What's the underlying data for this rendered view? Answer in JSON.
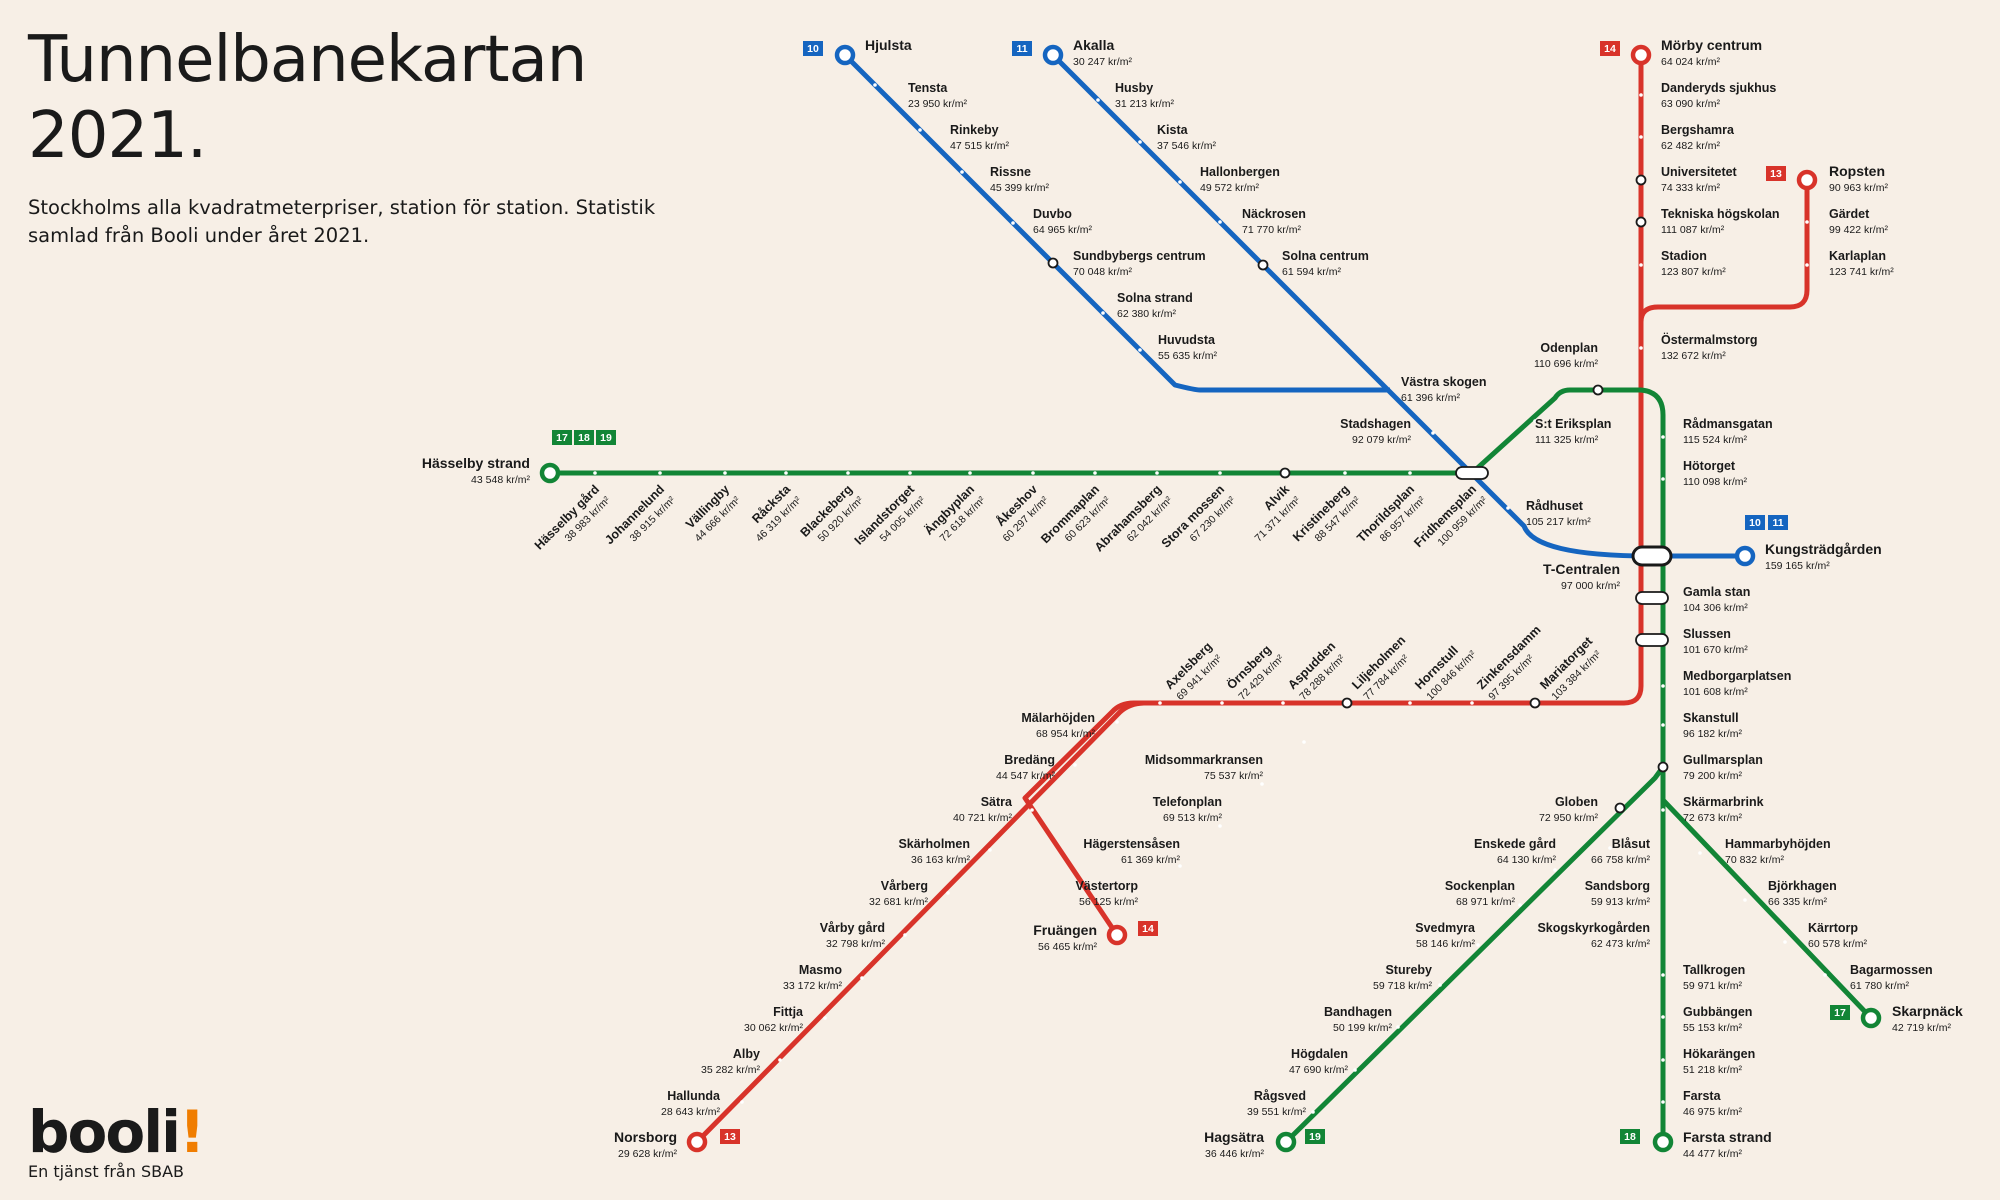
{
  "header": {
    "title_line1": "Tunnelbanekartan",
    "title_line2": "2021.",
    "subtitle": "Stockholms alla kvadratmeterpriser, station för station. Statistik samlad från Booli under året 2021."
  },
  "brand": {
    "logo": "booli",
    "logo_mark": "!",
    "tagline": "En tjänst från SBAB"
  },
  "colors": {
    "background": "#f7efe6",
    "green": "#128536",
    "red": "#d8332a",
    "blue": "#1565c0",
    "brand_orange": "#f07d00"
  },
  "line_badges": [
    {
      "line": "10",
      "color": "blue"
    },
    {
      "line": "11",
      "color": "blue"
    },
    {
      "line": "14",
      "color": "red"
    },
    {
      "line": "13",
      "color": "red"
    },
    {
      "line": "17",
      "color": "green"
    },
    {
      "line": "18",
      "color": "green"
    },
    {
      "line": "19",
      "color": "green"
    }
  ],
  "stations": [
    {
      "name": "Hjulsta",
      "price": "",
      "terminal": true,
      "line": "blue"
    },
    {
      "name": "Tensta",
      "price": "23 950 kr/m²",
      "line": "blue"
    },
    {
      "name": "Rinkeby",
      "price": "47 515 kr/m²",
      "line": "blue"
    },
    {
      "name": "Rissne",
      "price": "45 399 kr/m²",
      "line": "blue"
    },
    {
      "name": "Duvbo",
      "price": "64 965 kr/m²",
      "line": "blue"
    },
    {
      "name": "Sundbybergs centrum",
      "price": "70 048 kr/m²",
      "line": "blue"
    },
    {
      "name": "Solna strand",
      "price": "62 380 kr/m²",
      "line": "blue"
    },
    {
      "name": "Huvudsta",
      "price": "55 635 kr/m²",
      "line": "blue"
    },
    {
      "name": "Akalla",
      "price": "30 247 kr/m²",
      "terminal": true,
      "line": "blue"
    },
    {
      "name": "Husby",
      "price": "31 213 kr/m²",
      "line": "blue"
    },
    {
      "name": "Kista",
      "price": "37 546 kr/m²",
      "line": "blue"
    },
    {
      "name": "Hallonbergen",
      "price": "49 572 kr/m²",
      "line": "blue"
    },
    {
      "name": "Näckrosen",
      "price": "71 770 kr/m²",
      "line": "blue"
    },
    {
      "name": "Solna centrum",
      "price": "61 594 kr/m²",
      "line": "blue"
    },
    {
      "name": "Västra skogen",
      "price": "61 396 kr/m²",
      "line": "blue"
    },
    {
      "name": "Stadshagen",
      "price": "92 079 kr/m²",
      "line": "blue"
    },
    {
      "name": "Rådhuset",
      "price": "105 217 kr/m²",
      "line": "blue"
    },
    {
      "name": "T-Centralen",
      "price": "97 000 kr/m²",
      "terminal": true,
      "line": "blue"
    },
    {
      "name": "Kungsträdgården",
      "price": "159 165 kr/m²",
      "terminal": true,
      "line": "blue"
    },
    {
      "name": "Mörby centrum",
      "price": "64 024 kr/m²",
      "terminal": true,
      "line": "red"
    },
    {
      "name": "Danderyds sjukhus",
      "price": "63 090 kr/m²",
      "line": "red"
    },
    {
      "name": "Bergshamra",
      "price": "62 482 kr/m²",
      "line": "red"
    },
    {
      "name": "Universitetet",
      "price": "74 333 kr/m²",
      "line": "red"
    },
    {
      "name": "Tekniska högskolan",
      "price": "111 087 kr/m²",
      "line": "red"
    },
    {
      "name": "Stadion",
      "price": "123 807 kr/m²",
      "line": "red"
    },
    {
      "name": "Ropsten",
      "price": "90 963 kr/m²",
      "terminal": true,
      "line": "red"
    },
    {
      "name": "Gärdet",
      "price": "99 422 kr/m²",
      "line": "red"
    },
    {
      "name": "Karlaplan",
      "price": "123 741 kr/m²",
      "line": "red"
    },
    {
      "name": "Östermalmstorg",
      "price": "132 672 kr/m²",
      "line": "red"
    },
    {
      "name": "Odenplan",
      "price": "110 696 kr/m²",
      "line": "green"
    },
    {
      "name": "S:t Eriksplan",
      "price": "111 325 kr/m²",
      "line": "green"
    },
    {
      "name": "Rådmansgatan",
      "price": "115 524 kr/m²",
      "line": "green"
    },
    {
      "name": "Hötorget",
      "price": "110 098 kr/m²",
      "line": "green"
    },
    {
      "name": "Hässelby strand",
      "price": "43 548 kr/m²",
      "terminal": true,
      "line": "green"
    },
    {
      "name": "Hässelby gård",
      "price": "38 983 kr/m²",
      "line": "green"
    },
    {
      "name": "Johannelund",
      "price": "38 915 kr/m²",
      "line": "green"
    },
    {
      "name": "Vällingby",
      "price": "44 666 kr/m²",
      "line": "green"
    },
    {
      "name": "Råcksta",
      "price": "46 319 kr/m²",
      "line": "green"
    },
    {
      "name": "Blackeberg",
      "price": "50 920 kr/m²",
      "line": "green"
    },
    {
      "name": "Islandstorget",
      "price": "54 005 kr/m²",
      "line": "green"
    },
    {
      "name": "Ängbyplan",
      "price": "72 618 kr/m²",
      "line": "green"
    },
    {
      "name": "Åkeshov",
      "price": "60 297 kr/m²",
      "line": "green"
    },
    {
      "name": "Brommaplan",
      "price": "60 623 kr/m²",
      "line": "green"
    },
    {
      "name": "Abrahamsberg",
      "price": "62 042 kr/m²",
      "line": "green"
    },
    {
      "name": "Stora mossen",
      "price": "67 230 kr/m²",
      "line": "green"
    },
    {
      "name": "Alvik",
      "price": "71 371 kr/m²",
      "line": "green"
    },
    {
      "name": "Kristineberg",
      "price": "88 547 kr/m²",
      "line": "green"
    },
    {
      "name": "Thorildsplan",
      "price": "86 957 kr/m²",
      "line": "green"
    },
    {
      "name": "Fridhemsplan",
      "price": "100 959 kr/m²",
      "line": "green"
    },
    {
      "name": "Gamla stan",
      "price": "104 306 kr/m²",
      "line": "green"
    },
    {
      "name": "Slussen",
      "price": "101 670 kr/m²",
      "line": "green"
    },
    {
      "name": "Medborgarplatsen",
      "price": "101 608 kr/m²",
      "line": "green"
    },
    {
      "name": "Skanstull",
      "price": "96 182 kr/m²",
      "line": "green"
    },
    {
      "name": "Gullmarsplan",
      "price": "79 200 kr/m²",
      "line": "green"
    },
    {
      "name": "Skärmarbrink",
      "price": "72 673 kr/m²",
      "line": "green"
    },
    {
      "name": "Hammarbyhöjden",
      "price": "70 832 kr/m²",
      "line": "green"
    },
    {
      "name": "Björkhagen",
      "price": "66 335 kr/m²",
      "line": "green"
    },
    {
      "name": "Kärrtorp",
      "price": "60 578 kr/m²",
      "line": "green"
    },
    {
      "name": "Bagarmossen",
      "price": "61 780 kr/m²",
      "line": "green"
    },
    {
      "name": "Skarpnäck",
      "price": "42 719 kr/m²",
      "terminal": true,
      "line": "green"
    },
    {
      "name": "Tallkrogen",
      "price": "59 971 kr/m²",
      "line": "green"
    },
    {
      "name": "Gubbängen",
      "price": "55 153 kr/m²",
      "line": "green"
    },
    {
      "name": "Hökarängen",
      "price": "51 218 kr/m²",
      "line": "green"
    },
    {
      "name": "Farsta",
      "price": "46 975 kr/m²",
      "line": "green"
    },
    {
      "name": "Farsta strand",
      "price": "44 477 kr/m²",
      "terminal": true,
      "line": "green"
    },
    {
      "name": "Globen",
      "price": "72 950 kr/m²",
      "line": "green"
    },
    {
      "name": "Blåsut",
      "price": "66 758 kr/m²",
      "line": "green"
    },
    {
      "name": "Sandsborg",
      "price": "59 913 kr/m²",
      "line": "green"
    },
    {
      "name": "Skogskyrkogården",
      "price": "62 473 kr/m²",
      "line": "green"
    },
    {
      "name": "Enskede gård",
      "price": "64 130 kr/m²",
      "line": "green"
    },
    {
      "name": "Sockenplan",
      "price": "68 971 kr/m²",
      "line": "green"
    },
    {
      "name": "Svedmyra",
      "price": "58 146 kr/m²",
      "line": "green"
    },
    {
      "name": "Stureby",
      "price": "59 718 kr/m²",
      "line": "green"
    },
    {
      "name": "Bandhagen",
      "price": "50 199 kr/m²",
      "line": "green"
    },
    {
      "name": "Högdalen",
      "price": "47 690 kr/m²",
      "line": "green"
    },
    {
      "name": "Rågsved",
      "price": "39 551 kr/m²",
      "line": "green"
    },
    {
      "name": "Hagsätra",
      "price": "36 446 kr/m²",
      "terminal": true,
      "line": "green"
    },
    {
      "name": "Axelsberg",
      "price": "69 941 kr/m²",
      "line": "red"
    },
    {
      "name": "Örnsberg",
      "price": "72 429 kr/m²",
      "line": "red"
    },
    {
      "name": "Aspudden",
      "price": "78 288 kr/m²",
      "line": "red"
    },
    {
      "name": "Liljeholmen",
      "price": "77 784 kr/m²",
      "line": "red"
    },
    {
      "name": "Hornstull",
      "price": "100 846 kr/m²",
      "line": "red"
    },
    {
      "name": "Zinkensdamm",
      "price": "97 395 kr/m²",
      "line": "red"
    },
    {
      "name": "Mariatorget",
      "price": "103 384 kr/m²",
      "line": "red"
    },
    {
      "name": "Mälarhöjden",
      "price": "68 954 kr/m²",
      "line": "red"
    },
    {
      "name": "Bredäng",
      "price": "44 547 kr/m²",
      "line": "red"
    },
    {
      "name": "Sätra",
      "price": "40 721 kr/m²",
      "line": "red"
    },
    {
      "name": "Skärholmen",
      "price": "36 163 kr/m²",
      "line": "red"
    },
    {
      "name": "Vårberg",
      "price": "32 681 kr/m²",
      "line": "red"
    },
    {
      "name": "Vårby gård",
      "price": "32 798 kr/m²",
      "line": "red"
    },
    {
      "name": "Masmo",
      "price": "33 172 kr/m²",
      "line": "red"
    },
    {
      "name": "Fittja",
      "price": "30 062 kr/m²",
      "line": "red"
    },
    {
      "name": "Alby",
      "price": "35 282 kr/m²",
      "line": "red"
    },
    {
      "name": "Hallunda",
      "price": "28 643 kr/m²",
      "line": "red"
    },
    {
      "name": "Norsborg",
      "price": "29 628 kr/m²",
      "terminal": true,
      "line": "red"
    },
    {
      "name": "Midsommarkransen",
      "price": "75 537 kr/m²",
      "line": "red"
    },
    {
      "name": "Telefonplan",
      "price": "69 513 kr/m²",
      "line": "red"
    },
    {
      "name": "Hägerstensåsen",
      "price": "61 369 kr/m²",
      "line": "red"
    },
    {
      "name": "Västertorp",
      "price": "56 125 kr/m²",
      "line": "red"
    },
    {
      "name": "Fruängen",
      "price": "56 465 kr/m²",
      "terminal": true,
      "line": "red"
    }
  ]
}
